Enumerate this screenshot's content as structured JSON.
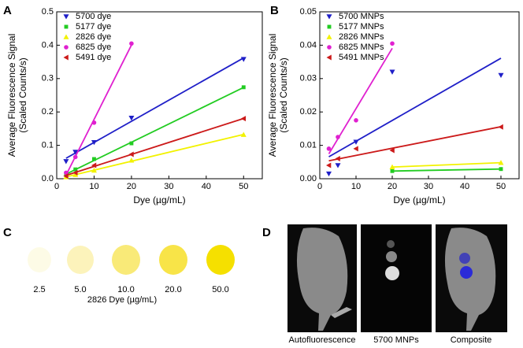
{
  "panel_labels": [
    "A",
    "B",
    "C",
    "D"
  ],
  "chart_data": [
    {
      "type": "scatter",
      "title": null,
      "xlabel": "Dye (µg/mL)",
      "ylabel": [
        "Average Fluorescence Signal",
        "(Scaled Counts/s)"
      ],
      "x": [
        2.5,
        5,
        10,
        20,
        50
      ],
      "xlim": [
        0,
        55
      ],
      "xticks": [
        0,
        10,
        20,
        30,
        40,
        50
      ],
      "ylim": [
        0,
        0.5
      ],
      "yticks": [
        {
          "value": 0,
          "label": "0.0"
        },
        {
          "value": 0.1,
          "label": "0.1"
        },
        {
          "value": 0.2,
          "label": "0.2"
        },
        {
          "value": 0.3,
          "label": "0.3"
        },
        {
          "value": 0.4,
          "label": "0.4"
        },
        {
          "value": 0.5,
          "label": "0.5"
        }
      ],
      "fit_lines": true,
      "legend": "upper left",
      "series": [
        {
          "name": "5700 dye",
          "color": "#1f1fc8",
          "marker": "tri-down",
          "values": [
            0.052,
            0.08,
            0.109,
            0.182,
            0.358
          ]
        },
        {
          "name": "5177 dye",
          "color": "#22cc22",
          "marker": "square",
          "values": [
            0.012,
            0.028,
            0.059,
            0.106,
            0.274
          ]
        },
        {
          "name": "2826 dye",
          "color": "#f2f200",
          "marker": "tri-up",
          "values": [
            0.005,
            0.012,
            0.025,
            0.055,
            0.132
          ]
        },
        {
          "name": "6825 dye",
          "color": "#e020d0",
          "marker": "circle",
          "values": [
            0.018,
            0.065,
            0.168,
            0.405,
            null
          ]
        },
        {
          "name": "5491 dye",
          "color": "#cc1a1a",
          "marker": "tri-left",
          "values": [
            0.008,
            0.018,
            0.04,
            0.073,
            0.18
          ]
        }
      ]
    },
    {
      "type": "scatter",
      "title": null,
      "xlabel": "Dye (µg/mL)",
      "ylabel": [
        "Average Fluorescence Signal",
        "(Scaled Counts/s)"
      ],
      "x": [
        2.5,
        5,
        10,
        20,
        50
      ],
      "xlim": [
        0,
        55
      ],
      "xticks": [
        0,
        10,
        20,
        30,
        40,
        50
      ],
      "ylim": [
        0,
        0.05
      ],
      "yticks": [
        {
          "value": 0,
          "label": "0.00"
        },
        {
          "value": 0.01,
          "label": "0.01"
        },
        {
          "value": 0.02,
          "label": "0.02"
        },
        {
          "value": 0.03,
          "label": "0.03"
        },
        {
          "value": 0.04,
          "label": "0.04"
        },
        {
          "value": 0.05,
          "label": "0.05"
        }
      ],
      "fit_lines": true,
      "legend": "upper left",
      "series": [
        {
          "name": "5700 MNPs",
          "color": "#1f1fc8",
          "marker": "tri-down",
          "values": [
            0.0015,
            0.004,
            0.011,
            0.032,
            0.031
          ]
        },
        {
          "name": "5177 MNPs",
          "color": "#22cc22",
          "marker": "square",
          "values": [
            null,
            null,
            null,
            0.0023,
            0.0029
          ]
        },
        {
          "name": "2826 MNPs",
          "color": "#f2f200",
          "marker": "tri-up",
          "values": [
            null,
            null,
            null,
            0.0035,
            0.0048
          ]
        },
        {
          "name": "6825 MNPs",
          "color": "#e020d0",
          "marker": "circle",
          "values": [
            0.009,
            0.0125,
            0.0175,
            0.0405,
            null
          ]
        },
        {
          "name": "5491 MNPs",
          "color": "#cc1a1a",
          "marker": "tri-left",
          "values": [
            0.004,
            0.006,
            0.009,
            0.0085,
            0.0155
          ]
        }
      ]
    }
  ],
  "swatches": {
    "labels": [
      "2.5",
      "5.0",
      "10.0",
      "20.0",
      "50.0"
    ],
    "colors": [
      "#fdfbe6",
      "#fcf3bb",
      "#f9ea78",
      "#f8e448",
      "#f5e000"
    ],
    "title": "2826 Dye (µg/mL)"
  },
  "images": {
    "captions": [
      "Autofluorescence",
      "5700 MNPs",
      "Composite"
    ]
  }
}
